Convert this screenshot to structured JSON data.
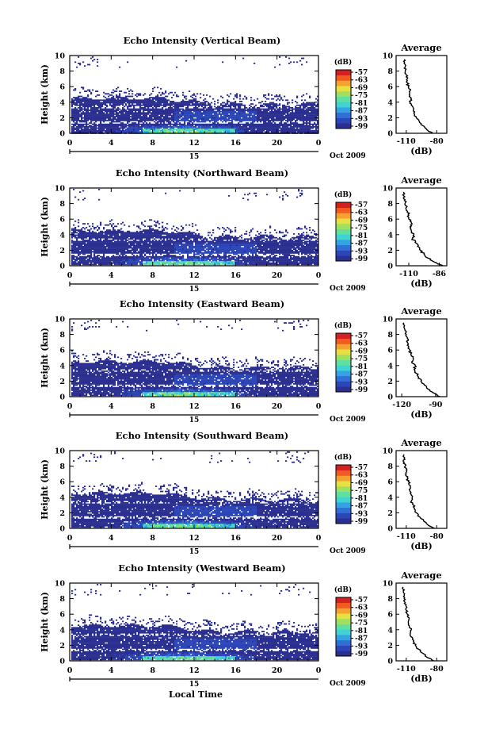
{
  "colors": {
    "colorbar": [
      "#2b2f8f",
      "#2c46b8",
      "#2f6fd6",
      "#35a2e3",
      "#3fd3d3",
      "#5fe0a0",
      "#9fe060",
      "#e6e040",
      "#f6a030",
      "#f25a20",
      "#d42020"
    ],
    "profile_line": "#000000",
    "axes": "#000000"
  },
  "common": {
    "date_label": "Oct 2009",
    "day_label": "15",
    "xlabel": "Local Time",
    "ylabel": "Height (km)",
    "colorbar_unit": "(dB)",
    "profile_title": "Average",
    "profile_xlabel": "(dB)"
  },
  "chart_data": [
    {
      "type": "heatmap",
      "title": "Echo Intensity (Vertical Beam)",
      "xlabel": "Local Time",
      "ylabel": "Height (km)",
      "xlim": [
        0,
        24
      ],
      "ylim": [
        0,
        10
      ],
      "x_ticks": [
        "0",
        "4",
        "8",
        "12",
        "16",
        "20",
        "0"
      ],
      "y_ticks": [
        "0",
        "2",
        "4",
        "6",
        "8",
        "10"
      ],
      "colorbar_ticks": [
        "-57",
        "-63",
        "-69",
        "-75",
        "-81",
        "-87",
        "-93",
        "-99"
      ],
      "profile": {
        "type": "line",
        "title": "Average",
        "xlabel": "(dB)",
        "x_ticks": [
          "-110",
          "-80"
        ],
        "xlim": [
          -120,
          -70
        ],
        "ylim": [
          0,
          10
        ],
        "height_km": [
          0,
          0.5,
          1,
          1.5,
          2,
          2.5,
          3,
          3.5,
          4,
          4.5,
          5,
          5.5,
          6,
          6.5,
          7,
          7.5,
          8,
          8.5,
          9,
          9.5
        ],
        "values": [
          -84,
          -90,
          -94,
          -97,
          -100,
          -102,
          -103,
          -104,
          -106,
          -105,
          -107,
          -106,
          -108,
          -109,
          -109,
          -110,
          -111,
          -111,
          -112,
          -112
        ]
      }
    },
    {
      "type": "heatmap",
      "title": "Echo Intensity (Northward Beam)",
      "xlabel": "Local Time",
      "ylabel": "Height (km)",
      "xlim": [
        0,
        24
      ],
      "ylim": [
        0,
        10
      ],
      "x_ticks": [
        "0",
        "4",
        "8",
        "12",
        "16",
        "20",
        "0"
      ],
      "y_ticks": [
        "0",
        "2",
        "4",
        "6",
        "8",
        "10"
      ],
      "colorbar_ticks": [
        "-57",
        "-63",
        "-69",
        "-75",
        "-81",
        "-87",
        "-93",
        "-99"
      ],
      "profile": {
        "type": "line",
        "title": "Average",
        "xlabel": "(dB)",
        "x_ticks": [
          "-110",
          "-86"
        ],
        "xlim": [
          -120,
          -80
        ],
        "ylim": [
          0,
          10
        ],
        "height_km": [
          0,
          0.5,
          1,
          1.5,
          2,
          2.5,
          3,
          3.5,
          4,
          4.5,
          5,
          5.5,
          6,
          6.5,
          7,
          7.5,
          8,
          8.5,
          9,
          9.5
        ],
        "values": [
          -83,
          -90,
          -95,
          -98,
          -101,
          -103,
          -105,
          -107,
          -106,
          -108,
          -109,
          -108,
          -110,
          -110,
          -111,
          -112,
          -113,
          -113,
          -114,
          -114
        ]
      }
    },
    {
      "type": "heatmap",
      "title": "Echo Intensity (Eastward Beam)",
      "xlabel": "Local Time",
      "ylabel": "Height (km)",
      "xlim": [
        0,
        24
      ],
      "ylim": [
        0,
        10
      ],
      "x_ticks": [
        "0",
        "4",
        "8",
        "12",
        "16",
        "20",
        "0"
      ],
      "y_ticks": [
        "0",
        "2",
        "4",
        "6",
        "8",
        "10"
      ],
      "colorbar_ticks": [
        "-57",
        "-63",
        "-69",
        "-75",
        "-81",
        "-87",
        "-93",
        "-99"
      ],
      "profile": {
        "type": "line",
        "title": "Average",
        "xlabel": "(dB)",
        "x_ticks": [
          "-120",
          "-90"
        ],
        "xlim": [
          -125,
          -80
        ],
        "ylim": [
          0,
          10
        ],
        "height_km": [
          0,
          0.5,
          1,
          1.5,
          2,
          2.5,
          3,
          3.5,
          4,
          4.5,
          5,
          5.5,
          6,
          6.5,
          7,
          7.5,
          8,
          8.5,
          9,
          9.5
        ],
        "values": [
          -86,
          -92,
          -97,
          -100,
          -103,
          -105,
          -107,
          -109,
          -108,
          -111,
          -110,
          -112,
          -113,
          -114,
          -115,
          -115,
          -116,
          -117,
          -118,
          -118
        ]
      }
    },
    {
      "type": "heatmap",
      "title": "Echo Intensity (Southward Beam)",
      "xlabel": "Local Time",
      "ylabel": "Height (km)",
      "xlim": [
        0,
        24
      ],
      "ylim": [
        0,
        10
      ],
      "x_ticks": [
        "0",
        "4",
        "8",
        "12",
        "16",
        "20",
        "0"
      ],
      "y_ticks": [
        "0",
        "2",
        "4",
        "6",
        "8",
        "10"
      ],
      "colorbar_ticks": [
        "-57",
        "-63",
        "-69",
        "-75",
        "-81",
        "-87",
        "-93",
        "-99"
      ],
      "profile": {
        "type": "line",
        "title": "Average",
        "xlabel": "(dB)",
        "x_ticks": [
          "-110",
          "-80"
        ],
        "xlim": [
          -120,
          -70
        ],
        "ylim": [
          0,
          10
        ],
        "height_km": [
          0,
          0.5,
          1,
          1.5,
          2,
          2.5,
          3,
          3.5,
          4,
          4.5,
          5,
          5.5,
          6,
          6.5,
          7,
          7.5,
          8,
          8.5,
          9,
          9.5
        ],
        "values": [
          -82,
          -89,
          -93,
          -97,
          -100,
          -102,
          -103,
          -105,
          -104,
          -106,
          -107,
          -106,
          -108,
          -109,
          -110,
          -110,
          -111,
          -112,
          -112,
          -112
        ]
      }
    },
    {
      "type": "heatmap",
      "title": "Echo Intensity (Westward Beam)",
      "xlabel": "Local Time",
      "ylabel": "Height (km)",
      "xlim": [
        0,
        24
      ],
      "ylim": [
        0,
        10
      ],
      "x_ticks": [
        "0",
        "4",
        "8",
        "12",
        "16",
        "20",
        "0"
      ],
      "y_ticks": [
        "0",
        "2",
        "4",
        "6",
        "8",
        "10"
      ],
      "colorbar_ticks": [
        "-57",
        "-63",
        "-69",
        "-75",
        "-81",
        "-87",
        "-93",
        "-99"
      ],
      "profile": {
        "type": "line",
        "title": "Average",
        "xlabel": "(dB)",
        "x_ticks": [
          "-110",
          "-80"
        ],
        "xlim": [
          -120,
          -70
        ],
        "ylim": [
          0,
          10
        ],
        "height_km": [
          0,
          0.5,
          1,
          1.5,
          2,
          2.5,
          3,
          3.5,
          4,
          4.5,
          5,
          5.5,
          6,
          6.5,
          7,
          7.5,
          8,
          8.5,
          9,
          9.5
        ],
        "values": [
          -83,
          -90,
          -94,
          -98,
          -101,
          -103,
          -104,
          -106,
          -105,
          -107,
          -108,
          -107,
          -109,
          -110,
          -110,
          -111,
          -112,
          -112,
          -113,
          -113
        ]
      }
    }
  ]
}
